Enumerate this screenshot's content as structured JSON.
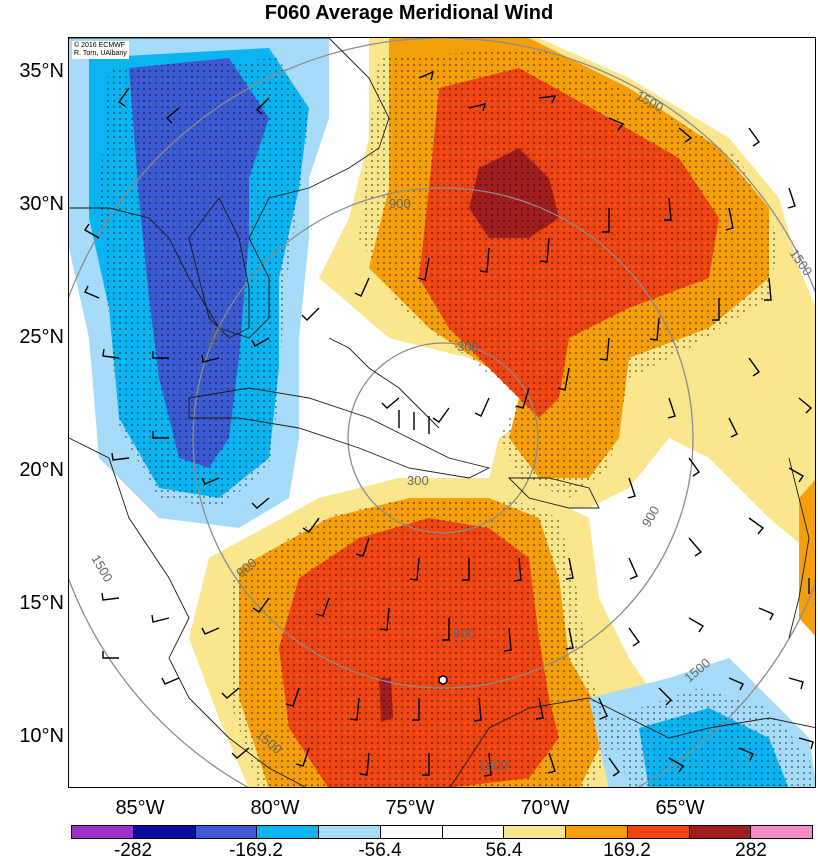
{
  "title": "F060 Average Meridional Wind",
  "copyright_lines": [
    "© 2016 ECMWF",
    "R. Torn, UAlbany"
  ],
  "lat_labels": [
    "35°N",
    "30°N",
    "25°N",
    "20°N",
    "15°N",
    "10°N"
  ],
  "lon_labels": [
    "85°W",
    "80°W",
    "75°W",
    "70°W",
    "65°W"
  ],
  "contour_labels": [
    "300",
    "900",
    "1500"
  ],
  "colorbar": {
    "colors": [
      "#a02fc8",
      "#0a0aa0",
      "#3c5ad2",
      "#0ab4f0",
      "#a6dcfa",
      "#ffffff",
      "#ffffff",
      "#fae68c",
      "#f5a00a",
      "#f04614",
      "#a01e1e",
      "#f58cc8"
    ],
    "labels": [
      "-282",
      "-169.2",
      "-56.4",
      "56.4",
      "169.2",
      "282"
    ]
  },
  "center_marker": "circle"
}
